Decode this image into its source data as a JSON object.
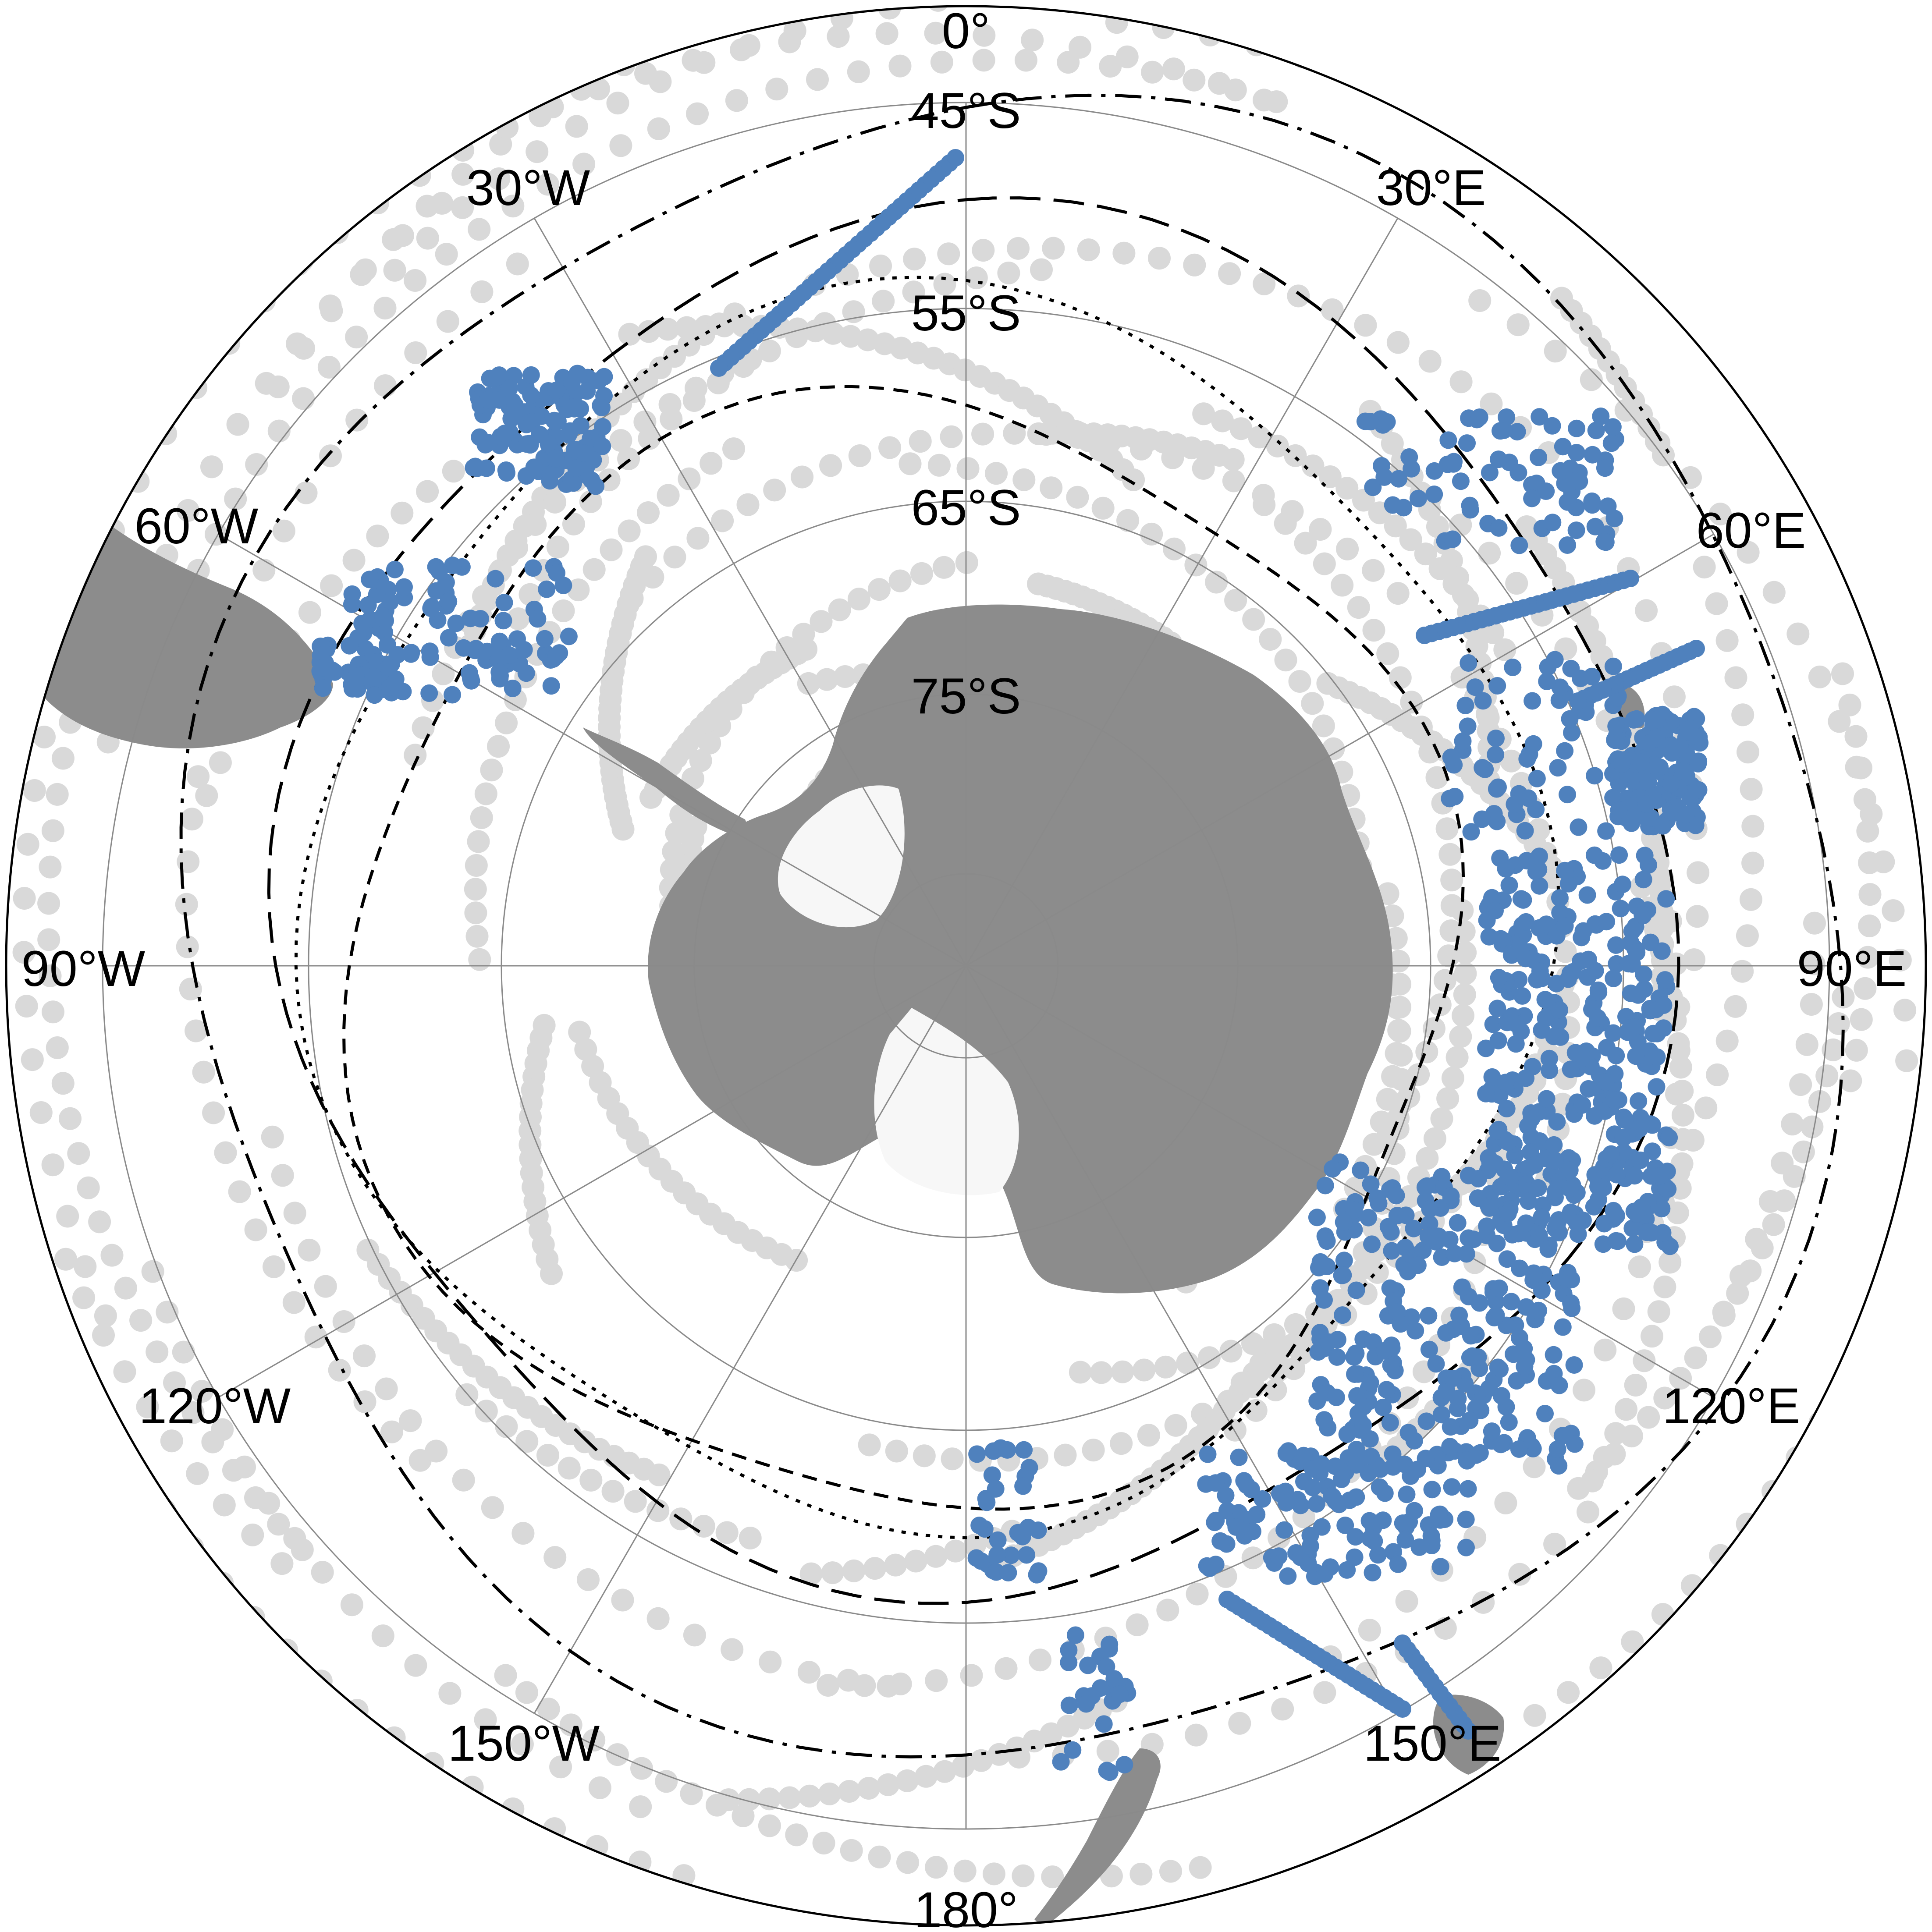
{
  "map": {
    "projection": "south-polar-stereographic",
    "colors": {
      "land": "#8c8c8c",
      "ice_shelf": "#f7f7f7",
      "grey_tracks": "#d9d9d9",
      "blue_points": "#4f81bd",
      "graticule": "#8a8a8a",
      "fronts": "#000000"
    },
    "latitude_labels": [
      "45°S",
      "55°S",
      "65°S",
      "75°S"
    ],
    "longitude_labels": {
      "0": "0°",
      "30": "30°E",
      "60": "60°E",
      "90": "90°E",
      "120": "120°E",
      "150": "150°E",
      "180": "180°",
      "-150": "150°W",
      "-120": "120°W",
      "-90": "90°W",
      "-60": "60°W",
      "-30": "30°W"
    },
    "fronts": [
      {
        "style": "dash-dot"
      },
      {
        "style": "long-dash"
      },
      {
        "style": "dotted"
      },
      {
        "style": "dashed"
      }
    ]
  }
}
